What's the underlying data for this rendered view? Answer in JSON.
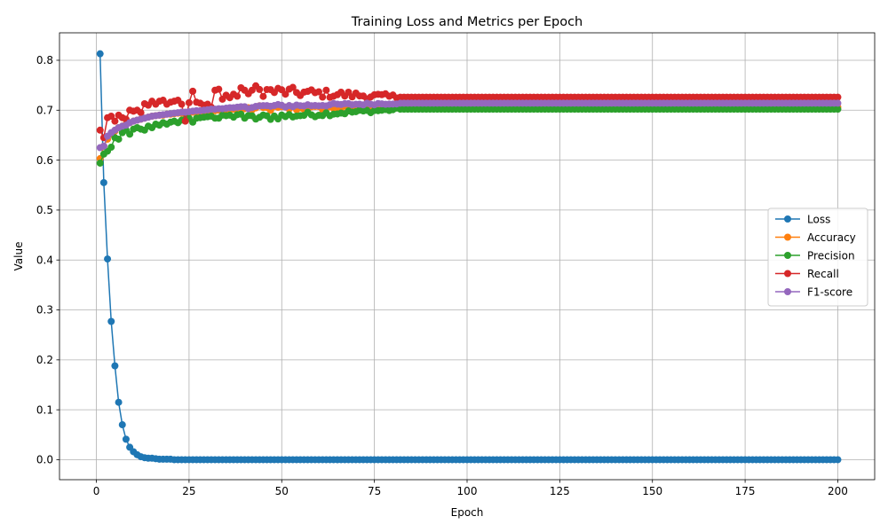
{
  "chart_data": {
    "type": "line",
    "title": "Training Loss and Metrics per Epoch",
    "xlabel": "Epoch",
    "ylabel": "Value",
    "xlim": [
      -9.95,
      209.95
    ],
    "ylim": [
      -0.04,
      0.855
    ],
    "xticks": [
      0,
      25,
      50,
      75,
      100,
      125,
      150,
      175,
      200
    ],
    "yticks": [
      0.0,
      0.1,
      0.2,
      0.3,
      0.4,
      0.5,
      0.6,
      0.7,
      0.8
    ],
    "ytick_labels": [
      "0.0",
      "0.1",
      "0.2",
      "0.3",
      "0.4",
      "0.5",
      "0.6",
      "0.7",
      "0.8"
    ],
    "grid": true,
    "legend_position": "center-right",
    "epochs": {
      "start": 1,
      "end": 200
    },
    "series": [
      {
        "name": "Loss",
        "color": "#1f77b4",
        "head": [
          0.813,
          0.555,
          0.402,
          0.277,
          0.188,
          0.115,
          0.07,
          0.041,
          0.025,
          0.016,
          0.01,
          0.006,
          0.004,
          0.003,
          0.003,
          0.002,
          0.001,
          0.001,
          0.001,
          0.001
        ],
        "tail_value": 0.0
      },
      {
        "name": "Accuracy",
        "color": "#ff7f0e",
        "head": [
          0.603,
          0.628,
          0.642,
          0.652,
          0.658,
          0.665,
          0.668,
          0.672,
          0.675,
          0.678,
          0.68,
          0.682,
          0.684,
          0.686,
          0.688,
          0.689,
          0.69,
          0.69,
          0.692,
          0.692,
          0.693,
          0.694,
          0.694,
          0.695,
          0.695,
          0.696,
          0.697,
          0.697,
          0.698,
          0.698,
          0.699,
          0.699,
          0.7,
          0.7,
          0.701,
          0.701,
          0.702,
          0.702,
          0.703,
          0.703
        ],
        "noise": 0.006,
        "converge_epoch": 82,
        "tail_value": 0.706
      },
      {
        "name": "Precision",
        "color": "#2ca02c",
        "head": [
          0.594,
          0.612,
          0.618,
          0.626,
          0.645,
          0.642,
          0.655,
          0.66,
          0.652,
          0.662,
          0.665,
          0.662,
          0.66,
          0.668,
          0.665,
          0.672,
          0.67,
          0.675,
          0.672,
          0.676,
          0.678,
          0.675,
          0.68,
          0.682,
          0.684,
          0.676,
          0.684,
          0.685,
          0.686,
          0.687,
          0.688,
          0.684,
          0.684,
          0.69,
          0.689,
          0.69,
          0.686,
          0.691,
          0.692,
          0.684
        ],
        "noise": 0.007,
        "converge_epoch": 82,
        "tail_value": 0.702
      },
      {
        "name": "Recall",
        "color": "#d62728",
        "head": [
          0.66,
          0.645,
          0.685,
          0.688,
          0.678,
          0.69,
          0.685,
          0.682,
          0.7,
          0.698,
          0.7,
          0.695,
          0.713,
          0.71,
          0.718,
          0.712,
          0.718,
          0.72,
          0.712,
          0.716,
          0.718,
          0.72,
          0.712,
          0.678,
          0.715,
          0.738,
          0.716,
          0.714,
          0.71,
          0.712,
          0.706,
          0.74,
          0.742,
          0.722,
          0.73,
          0.725,
          0.732,
          0.728,
          0.745,
          0.74
        ],
        "noise": 0.012,
        "converge_epoch": 82,
        "tail_value": 0.726
      },
      {
        "name": "F1-score",
        "color": "#9467bd",
        "head": [
          0.625,
          0.628,
          0.648,
          0.655,
          0.66,
          0.665,
          0.668,
          0.67,
          0.675,
          0.678,
          0.68,
          0.682,
          0.684,
          0.686,
          0.688,
          0.689,
          0.69,
          0.691,
          0.692,
          0.693,
          0.694,
          0.695,
          0.696,
          0.696,
          0.697,
          0.698,
          0.699,
          0.699,
          0.7,
          0.701,
          0.702,
          0.702,
          0.703,
          0.703,
          0.704,
          0.705,
          0.705,
          0.706,
          0.707,
          0.707
        ],
        "noise": 0.004,
        "converge_epoch": 82,
        "tail_value": 0.714
      }
    ]
  }
}
